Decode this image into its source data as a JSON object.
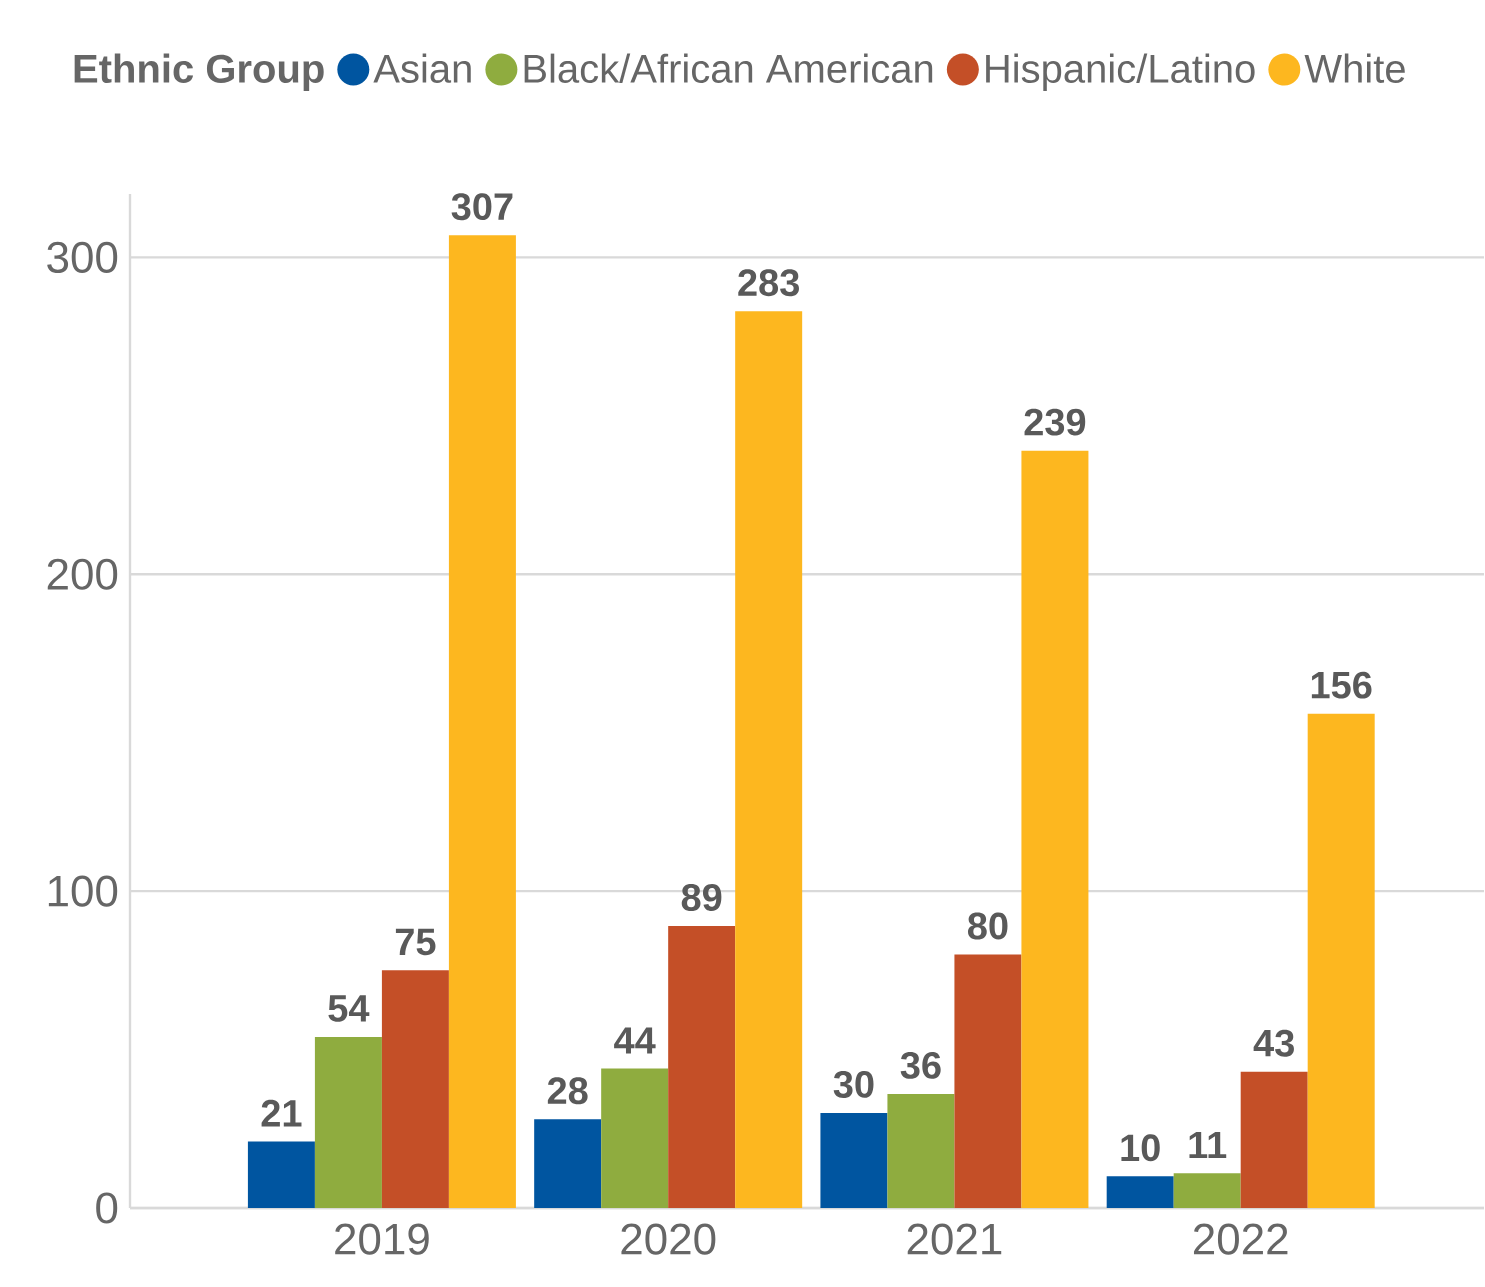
{
  "chart_data": {
    "type": "bar",
    "legend_title": "Ethnic Group",
    "legend": "top",
    "categories": [
      "2019",
      "2020",
      "2021",
      "2022"
    ],
    "series": [
      {
        "name": "Asian",
        "color": "#0055a0",
        "values": [
          21,
          28,
          30,
          10
        ]
      },
      {
        "name": "Black/African American",
        "color": "#8fac3f",
        "values": [
          54,
          44,
          36,
          11
        ]
      },
      {
        "name": "Hispanic/Latino",
        "color": "#c44f27",
        "values": [
          75,
          89,
          80,
          43
        ]
      },
      {
        "name": "White",
        "color": "#fdb71f",
        "values": [
          307,
          283,
          239,
          156
        ]
      }
    ],
    "ylim": [
      0,
      320
    ],
    "yticks": [
      0,
      100,
      200,
      300
    ],
    "grid": "y",
    "data_labels": true
  }
}
